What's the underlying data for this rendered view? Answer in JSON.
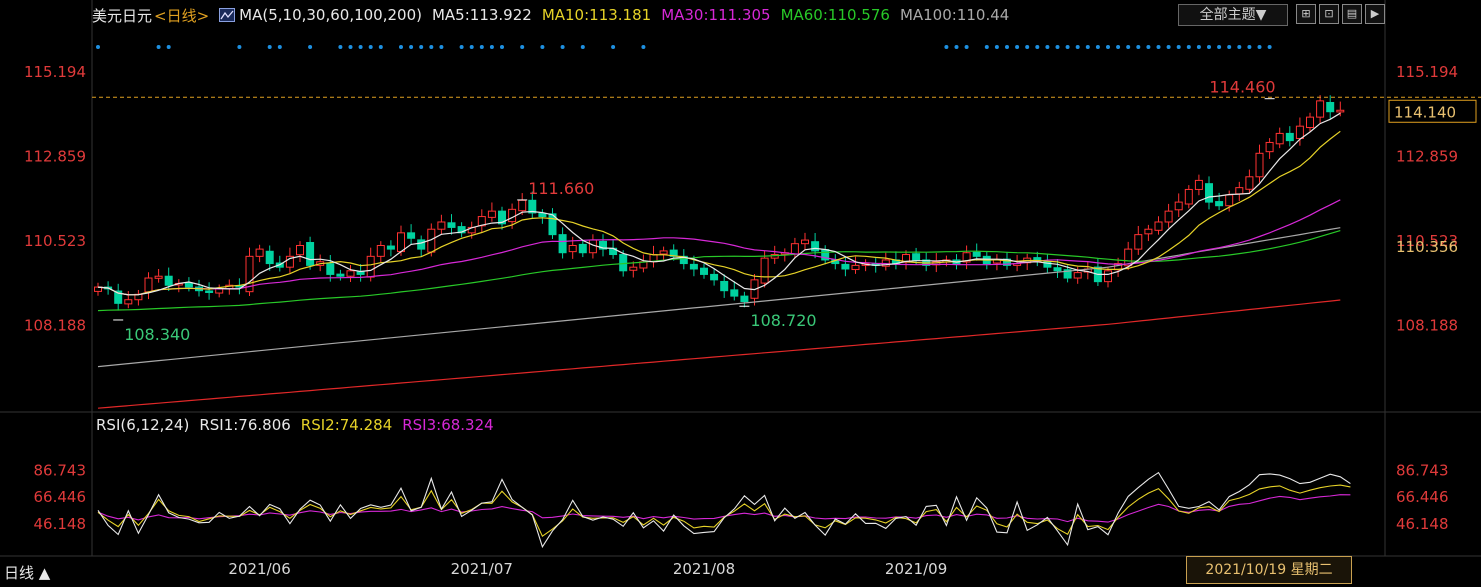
{
  "header": {
    "symbol": "美元日元",
    "period": "<日线>",
    "ma_label": "MA(5,10,30,60,100,200)",
    "ma5": "MA5:113.922",
    "ma10": "MA10:113.181",
    "ma30": "MA30:111.305",
    "ma60": "MA60:110.576",
    "ma100": "MA100:110.44",
    "theme_button": "全部主题▼"
  },
  "toolbar": {
    "icons": [
      "grid-add-icon",
      "zoom-icon",
      "chart-icon",
      "play-icon"
    ]
  },
  "rsi_header": {
    "label": "RSI(6,12,24)",
    "rsi1": "RSI1:76.806",
    "rsi2": "RSI2:74.284",
    "rsi3": "RSI3:68.324"
  },
  "footer": {
    "period_label": "日线 ▲",
    "hover_date": "2021/10/19 星期二"
  },
  "colors": {
    "up": "#ff3232",
    "down": "#00d2a0",
    "ma5": "#e8e8e8",
    "ma10": "#e6d228",
    "ma30": "#d628d6",
    "ma60": "#28c828",
    "ma100": "#a8a8a8",
    "ma200": "#e02828",
    "axis_text_red": "#e03a3a",
    "price_line": "#e0a020"
  },
  "chart_data": {
    "type": "candlestick",
    "price_axis": {
      "ylim": [
        105.85,
        116.36
      ],
      "ticks": [
        "115.194",
        "112.859",
        "110.523",
        "108.188"
      ]
    },
    "rsi_axis": {
      "ylim": [
        24,
        110
      ],
      "ticks": [
        "86.743",
        "66.446",
        "46.148"
      ]
    },
    "x_labels": [
      {
        "label": "2021/06",
        "index": 16
      },
      {
        "label": "2021/07",
        "index": 38
      },
      {
        "label": "2021/08",
        "index": 60
      },
      {
        "label": "2021/09",
        "index": 81
      }
    ],
    "current_price": "114.140",
    "ma60_marker": "110.356",
    "annotations": [
      {
        "text": "111.660",
        "index": 42,
        "value": 111.66,
        "kind": "high"
      },
      {
        "text": "108.340",
        "index": 2,
        "value": 108.34,
        "kind": "low"
      },
      {
        "text": "108.720",
        "index": 64,
        "value": 108.72,
        "kind": "low"
      },
      {
        "text": "114.460",
        "index": 116,
        "value": 114.46,
        "kind": "high"
      }
    ],
    "closes": [
      109.25,
      109.2,
      108.8,
      108.9,
      109.05,
      109.5,
      109.55,
      109.3,
      109.35,
      109.25,
      109.15,
      109.1,
      109.2,
      109.3,
      109.25,
      110.1,
      110.3,
      109.9,
      109.8,
      110.1,
      110.4,
      109.85,
      109.95,
      109.6,
      109.55,
      109.7,
      109.6,
      110.1,
      110.4,
      110.3,
      110.75,
      110.6,
      110.3,
      110.85,
      111.05,
      110.9,
      110.75,
      110.9,
      111.2,
      111.35,
      111.0,
      111.4,
      111.65,
      111.3,
      111.2,
      110.7,
      110.2,
      110.4,
      110.2,
      110.55,
      110.3,
      110.15,
      109.7,
      109.8,
      109.95,
      110.15,
      110.25,
      110.1,
      109.9,
      109.75,
      109.6,
      109.45,
      109.15,
      109.0,
      108.85,
      109.45,
      110.05,
      110.15,
      110.2,
      110.45,
      110.55,
      110.25,
      110.0,
      109.9,
      109.75,
      109.85,
      109.9,
      109.85,
      110.0,
      109.9,
      110.15,
      110.0,
      109.85,
      109.95,
      110.0,
      109.9,
      110.2,
      110.1,
      109.9,
      110.0,
      109.85,
      109.9,
      110.05,
      109.95,
      109.8,
      109.7,
      109.5,
      109.65,
      109.75,
      109.4,
      109.7,
      109.9,
      110.3,
      110.7,
      110.85,
      111.05,
      111.35,
      111.6,
      111.95,
      112.2,
      111.6,
      111.5,
      111.8,
      112.0,
      112.3,
      112.95,
      113.25,
      113.5,
      113.3,
      113.7,
      113.95,
      114.4,
      114.1,
      114.14
    ],
    "rsi1": [
      56.5,
      45.0,
      38.1,
      56.1,
      39.0,
      53.2,
      68.4,
      54.6,
      51.0,
      49.8,
      47.0,
      47.4,
      54.9,
      50.4,
      52.1,
      59.4,
      52.4,
      61.0,
      57.7,
      46.3,
      57.3,
      64.2,
      60.5,
      48.2,
      60.7,
      50.3,
      57.9,
      60.7,
      58.8,
      60.5,
      73.3,
      56.1,
      58.8,
      80.8,
      57.3,
      70.4,
      51.8,
      56.6,
      62.0,
      63.0,
      80.0,
      64.7,
      58.8,
      53.0,
      28.7,
      40.8,
      49.4,
      64.1,
      51.8,
      49.0,
      51.4,
      49.7,
      44.3,
      54.7,
      43.2,
      48.5,
      40.7,
      52.9,
      44.7,
      38.8,
      39.7,
      40.3,
      50.9,
      57.6,
      67.5,
      61.0,
      67.8,
      48.5,
      58.2,
      50.4,
      54.8,
      45.2,
      37.6,
      49.9,
      46.0,
      53.8,
      46.5,
      46.6,
      42.7,
      50.3,
      51.7,
      45.1,
      59.5,
      60.3,
      44.9,
      66.8,
      48.9,
      66.0,
      58.2,
      39.9,
      39.4,
      62.8,
      41.3,
      45.5,
      51.1,
      40.8,
      30.2,
      61.3,
      41.7,
      44.1,
      37.9,
      54.4,
      67.1,
      73.8,
      80.1,
      85.2,
      72.6,
      59.5,
      58.0,
      59.4,
      63.1,
      56.8,
      66.9,
      70.8,
      76.0,
      83.6,
      84.2,
      83.3,
      80.6,
      76.8,
      77.8,
      80.9,
      84.0,
      82.0,
      76.8
    ],
    "rsi2": [
      55.0,
      49.0,
      44.1,
      53.2,
      45.1,
      54.1,
      64.8,
      56.1,
      52.6,
      51.7,
      48.0,
      50.0,
      52.2,
      52.0,
      51.8,
      56.4,
      53.0,
      58.8,
      55.5,
      50.4,
      56.4,
      60.9,
      58.0,
      51.6,
      56.1,
      53.3,
      56.1,
      58.6,
      57.5,
      58.3,
      66.9,
      56.9,
      58.9,
      71.4,
      57.0,
      64.6,
      54.2,
      57.1,
      62.0,
      61.8,
      71.0,
      62.9,
      58.8,
      53.3,
      36.8,
      42.2,
      48.5,
      57.5,
      51.3,
      50.4,
      50.7,
      50.8,
      47.3,
      51.7,
      45.4,
      50.4,
      45.2,
      51.2,
      48.2,
      43.1,
      44.3,
      43.8,
      51.3,
      55.8,
      61.4,
      56.1,
      61.5,
      49.6,
      53.6,
      51.6,
      52.2,
      45.4,
      43.2,
      48.5,
      45.7,
      50.8,
      50.5,
      49.2,
      46.8,
      51.2,
      50.2,
      46.9,
      55.5,
      57.0,
      47.8,
      58.7,
      51.4,
      59.8,
      56.5,
      46.2,
      43.8,
      53.5,
      47.4,
      46.4,
      49.1,
      42.5,
      38.3,
      53.2,
      44.2,
      44.9,
      41.8,
      51.1,
      59.0,
      64.9,
      69.6,
      73.0,
      65.2,
      56.0,
      54.2,
      58.4,
      59.2,
      55.5,
      63.9,
      65.8,
      68.6,
      72.8,
      74.3,
      75.1,
      71.8,
      69.6,
      71.8,
      73.7,
      75.0,
      75.7,
      74.3
    ],
    "rsi3": [
      55.1,
      52.0,
      50.0,
      51.2,
      49.2,
      51.5,
      53.0,
      50.9,
      50.8,
      51.0,
      50.0,
      50.9,
      51.6,
      52.0,
      52.4,
      53.5,
      52.9,
      54.5,
      53.7,
      52.8,
      54.7,
      56.1,
      55.2,
      53.4,
      54.8,
      54.0,
      55.1,
      55.7,
      55.7,
      55.9,
      57.2,
      55.5,
      56.8,
      58.4,
      55.5,
      57.4,
      55.1,
      56.0,
      57.1,
      57.6,
      59.3,
      57.8,
      56.5,
      55.5,
      50.8,
      51.2,
      52.2,
      53.7,
      52.5,
      52.2,
      52.0,
      51.9,
      51.2,
      52.0,
      50.1,
      51.7,
      50.8,
      51.9,
      51.0,
      49.8,
      50.2,
      50.3,
      51.9,
      53.2,
      54.3,
      53.2,
      54.4,
      51.9,
      52.6,
      51.5,
      52.2,
      50.6,
      50.0,
      50.4,
      50.2,
      51.3,
      51.4,
      50.6,
      50.5,
      51.5,
      51.4,
      50.5,
      52.5,
      52.9,
      51.2,
      53.2,
      51.8,
      53.5,
      53.0,
      50.4,
      50.6,
      52.4,
      50.4,
      49.9,
      50.2,
      49.9,
      47.9,
      50.5,
      48.5,
      48.2,
      47.5,
      49.9,
      53.2,
      55.9,
      58.6,
      61.1,
      59.4,
      56.0,
      55.0,
      56.5,
      57.0,
      56.0,
      59.5,
      61.1,
      61.7,
      63.7,
      65.7,
      67.1,
      66.3,
      64.6,
      65.7,
      66.8,
      67.4,
      68.4,
      68.3
    ],
    "dots": [
      0,
      6,
      7,
      14,
      17,
      18,
      21,
      24,
      25,
      26,
      27,
      28,
      30,
      31,
      32,
      33,
      34,
      36,
      37,
      38,
      39,
      40,
      42,
      44,
      46,
      48,
      51,
      54,
      84,
      85,
      86,
      88,
      89,
      90,
      91,
      92,
      93,
      94,
      95,
      96,
      97,
      98,
      99,
      100,
      101,
      102,
      103,
      104,
      105,
      106,
      107,
      108,
      109,
      110,
      111,
      112,
      113,
      114,
      115,
      116
    ]
  }
}
